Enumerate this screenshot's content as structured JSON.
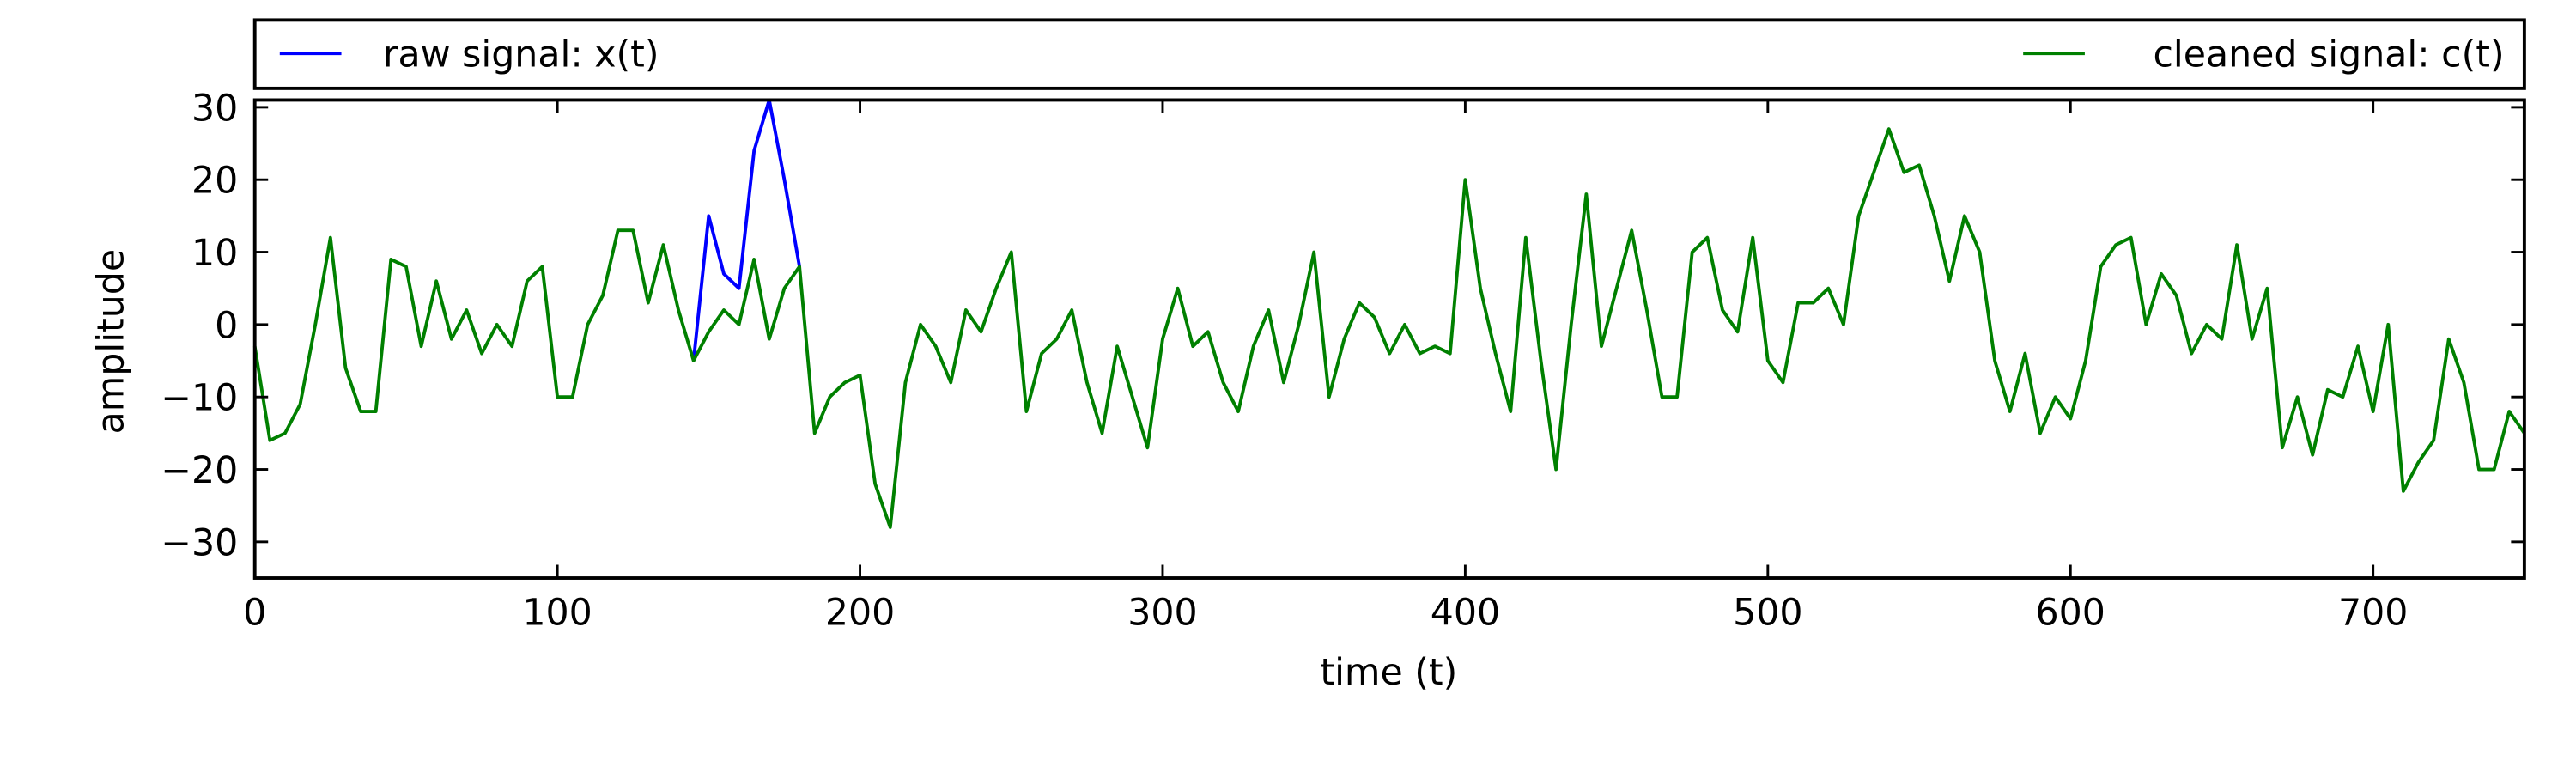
{
  "chart_data": {
    "type": "line",
    "xlabel": "time (t)",
    "ylabel": "amplitude",
    "xlim": [
      0,
      750
    ],
    "ylim": [
      -35,
      31
    ],
    "xticks": [
      0,
      100,
      200,
      300,
      400,
      500,
      600,
      700
    ],
    "yticks": [
      {
        "value": -30,
        "label": "−30"
      },
      {
        "value": -20,
        "label": "−20"
      },
      {
        "value": -10,
        "label": "−10"
      },
      0,
      10,
      20,
      30
    ],
    "legend": "top",
    "series": [
      {
        "name": "raw signal: x(t)",
        "color": "#0000ff",
        "x": [
          145,
          150,
          155,
          160,
          165,
          170,
          175,
          180
        ],
        "values": [
          -5,
          15,
          7,
          5,
          24,
          31,
          20,
          8
        ]
      },
      {
        "name": "cleaned signal: c(t)",
        "color": "#008000",
        "x": [
          0,
          5,
          10,
          15,
          20,
          25,
          30,
          35,
          40,
          45,
          50,
          55,
          60,
          65,
          70,
          75,
          80,
          85,
          90,
          95,
          100,
          105,
          110,
          115,
          120,
          125,
          130,
          135,
          140,
          145,
          150,
          155,
          160,
          165,
          170,
          175,
          180,
          185,
          190,
          195,
          200,
          205,
          210,
          215,
          220,
          225,
          230,
          235,
          240,
          245,
          250,
          255,
          260,
          265,
          270,
          275,
          280,
          285,
          290,
          295,
          300,
          305,
          310,
          315,
          320,
          325,
          330,
          335,
          340,
          345,
          350,
          355,
          360,
          365,
          370,
          375,
          380,
          385,
          390,
          395,
          400,
          405,
          410,
          415,
          420,
          425,
          430,
          435,
          440,
          445,
          450,
          455,
          460,
          465,
          470,
          475,
          480,
          485,
          490,
          495,
          500,
          505,
          510,
          515,
          520,
          525,
          530,
          535,
          540,
          545,
          550,
          555,
          560,
          565,
          570,
          575,
          580,
          585,
          590,
          595,
          600,
          605,
          610,
          615,
          620,
          625,
          630,
          635,
          640,
          645,
          650,
          655,
          660,
          665,
          670,
          675,
          680,
          685,
          690,
          695,
          700,
          705,
          710,
          715,
          720,
          725,
          730,
          735,
          740,
          745,
          750
        ],
        "values": [
          -3,
          -16,
          -15,
          -11,
          0,
          12,
          -6,
          -12,
          -12,
          9,
          8,
          -3,
          6,
          -2,
          2,
          -4,
          0,
          -3,
          6,
          8,
          -10,
          -10,
          0,
          4,
          13,
          13,
          3,
          11,
          2,
          -5,
          -1,
          2,
          0,
          9,
          -2,
          5,
          8,
          -15,
          -10,
          -8,
          -7,
          -22,
          -28,
          -8,
          0,
          -3,
          -8,
          2,
          -1,
          5,
          10,
          -12,
          -4,
          -2,
          2,
          -8,
          -15,
          -3,
          -10,
          -17,
          -2,
          5,
          -3,
          -1,
          -8,
          -12,
          -3,
          2,
          -8,
          0,
          10,
          -10,
          -2,
          3,
          1,
          -4,
          0,
          -4,
          -3,
          -4,
          20,
          5,
          -4,
          -12,
          12,
          -5,
          -20,
          0,
          18,
          -3,
          5,
          13,
          2,
          -10,
          -10,
          10,
          12,
          2,
          -1,
          12,
          -5,
          -8,
          3,
          3,
          5,
          0,
          15,
          21,
          27,
          21,
          22,
          15,
          6,
          15,
          10,
          -5,
          -12,
          -4,
          -15,
          -10,
          -13,
          -5,
          8,
          11,
          12,
          0,
          7,
          4,
          -4,
          0,
          -2,
          11,
          -2,
          5,
          -17,
          -10,
          -18,
          -9,
          -10,
          -3,
          -12,
          0,
          -23,
          -19,
          -16,
          -2,
          -8,
          -20,
          -20,
          -12,
          -15
        ]
      }
    ]
  }
}
